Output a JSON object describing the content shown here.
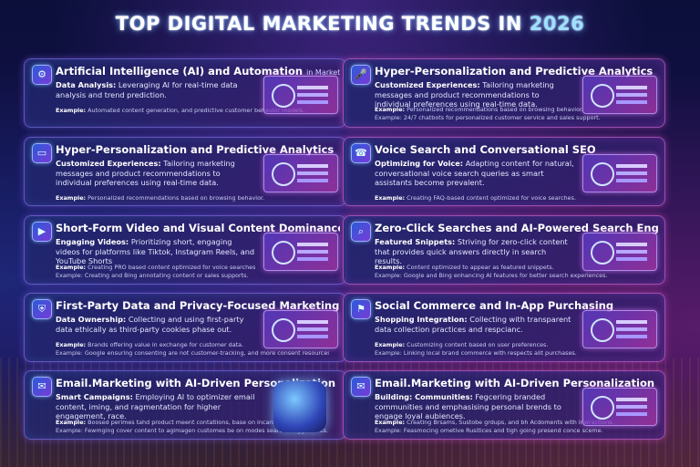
{
  "page": {
    "title_main": "TOP DIGITAL MARKETING TRENDS IN",
    "title_year": "2026"
  },
  "cards": [
    {
      "icon": "ai-chip-icon",
      "title": "Artificial Intelligence (AI) and Automation",
      "title_suffix": "in Marketing",
      "sub_label": "Data Analysis:",
      "sub_text": "Leveraging AI for real-time data analysis and trend prediction.",
      "ex1": "Automated content generation, and predictive customer behavior models.",
      "ex2": ""
    },
    {
      "icon": "microphone-icon",
      "title": "Hyper-Personalization and Predictive Analytics",
      "title_suffix": "",
      "sub_label": "Customized Experiences:",
      "sub_text": "Tailoring marketing messages and product recommendations to individual preferences using real-time data.",
      "ex1": "Personalized recommendations based on browsing behavior.",
      "ex2": "Example: 24/7 chatbots for personalized customer service and sales support."
    },
    {
      "icon": "monitor-icon",
      "title": "Hyper-Personalization and Predictive Analytics",
      "title_suffix": "",
      "sub_label": "Customized Experiences:",
      "sub_text": "Tailoring marketing messages and product recommendations to individual preferences using real-time data.",
      "ex1": "Personalized recommendations based on browsing behavior.",
      "ex2": ""
    },
    {
      "icon": "phone-icon",
      "title": "Voice Search and Conversational SEO",
      "title_suffix": "",
      "sub_label": "Optimizing for Voice:",
      "sub_text": "Adapting content for natural, conversational voice search queries as smart assistants become prevalent.",
      "ex1": "Creating FAQ-based content optimized for voice searches.",
      "ex2": ""
    },
    {
      "icon": "video-icon",
      "title": "Short-Form Video and Visual Content Dominance",
      "title_suffix": "",
      "sub_label": "Engaging Videos:",
      "sub_text": "Prioritizing short, engaging videos for platforms like Tiktok, Instagram Reels, and YouTube Shorts",
      "ex1": "Creating PRO based content optimized for voice searches",
      "ex2": "Example: Creating and Bing annotating content or sales supports."
    },
    {
      "icon": "search-icon",
      "title": "Zero-Click Searches and AI-Powered Search Engines",
      "title_suffix": "",
      "sub_label": "Featured Snippets:",
      "sub_text": "Striving for zero-click content that provides quick answers directly in search results.",
      "ex1": "Content optimized to appear as featured snippets.",
      "ex2": "Example: Google and Bing enhancing AI features for better search experiences."
    },
    {
      "icon": "shield-icon",
      "title": "First-Party Data and Privacy-Focused Marketing",
      "title_suffix": "",
      "sub_label": "Data Ownership:",
      "sub_text": "Collecting and using first-party data ethically as third-party cookies phase out.",
      "ex1": "Brands offering value in exchange for customer data.",
      "ex2": "Example: Google ensuring consenting are not customer-tracking, and more consent resources."
    },
    {
      "icon": "shopping-bag-icon",
      "title": "Social Commerce and In-App Purchasing",
      "title_suffix": "",
      "sub_label": "Shopping Integration:",
      "sub_text": "Collecting with transparent data collection practices and respcianc.",
      "ex1": "Customizing content based on user preferences.",
      "ex2": "Example: Linking local brand commerce with respects alit purchases."
    },
    {
      "icon": "email-icon",
      "title": "Email.Marketing with AI-Driven Personalization",
      "title_suffix": "",
      "sub_label": "Smart Campaigns:",
      "sub_text": "Employing AI to optimizer email content, iming, and ragmentation for higher engagement, race.",
      "ex1": "Boosed perimes tahd product meent contatiions, base on incaroctions.",
      "ex2": "Example: Fewmging cover content to agimagen customes be on modes searce maggements."
    },
    {
      "icon": "email-icon",
      "title": "Email.Marketing with AI-Driven Personalization",
      "title_suffix": "",
      "sub_label": "Building: Communities:",
      "sub_text": "Fegcering branded communities and emphasising personal brends to engage loyal aubiences.",
      "ex1": "Creating Brsams, Sustobe grdups, and bh Acdoments with inwractions.",
      "ex2": "Example: Feasmocing ometive Rusitices and tigh going presend conce sceme."
    }
  ],
  "labels": {
    "example": "Example:"
  }
}
